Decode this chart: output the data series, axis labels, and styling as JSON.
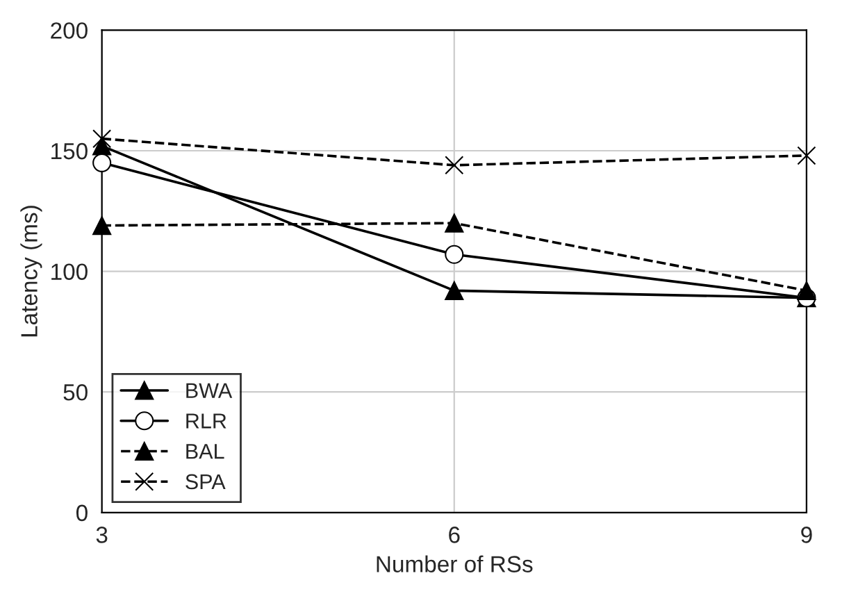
{
  "chart_data": {
    "type": "line",
    "xlabel": "Number of RSs",
    "ylabel": "Latency (ms)",
    "x": [
      3,
      6,
      9
    ],
    "xlim": [
      3,
      9
    ],
    "xticks": [
      3,
      6,
      9
    ],
    "ylim": [
      0,
      200
    ],
    "yticks": [
      0,
      50,
      100,
      150,
      200
    ],
    "grid": true,
    "legend": "bottom left",
    "series": [
      {
        "name": "BWA",
        "color": "#000000",
        "values": [
          152,
          92,
          89
        ],
        "marker": "triangle",
        "line_style": "solid"
      },
      {
        "name": "RLR",
        "color": "#000000",
        "values": [
          145,
          107,
          89
        ],
        "marker": "circle",
        "line_style": "solid"
      },
      {
        "name": "BAL",
        "color": "#000000",
        "values": [
          119,
          120,
          92
        ],
        "marker": "triangle",
        "line_style": "dashed"
      },
      {
        "name": "SPA",
        "color": "#000000",
        "values": [
          155,
          144,
          148
        ],
        "marker": "cross",
        "line_style": "dashed"
      }
    ]
  }
}
